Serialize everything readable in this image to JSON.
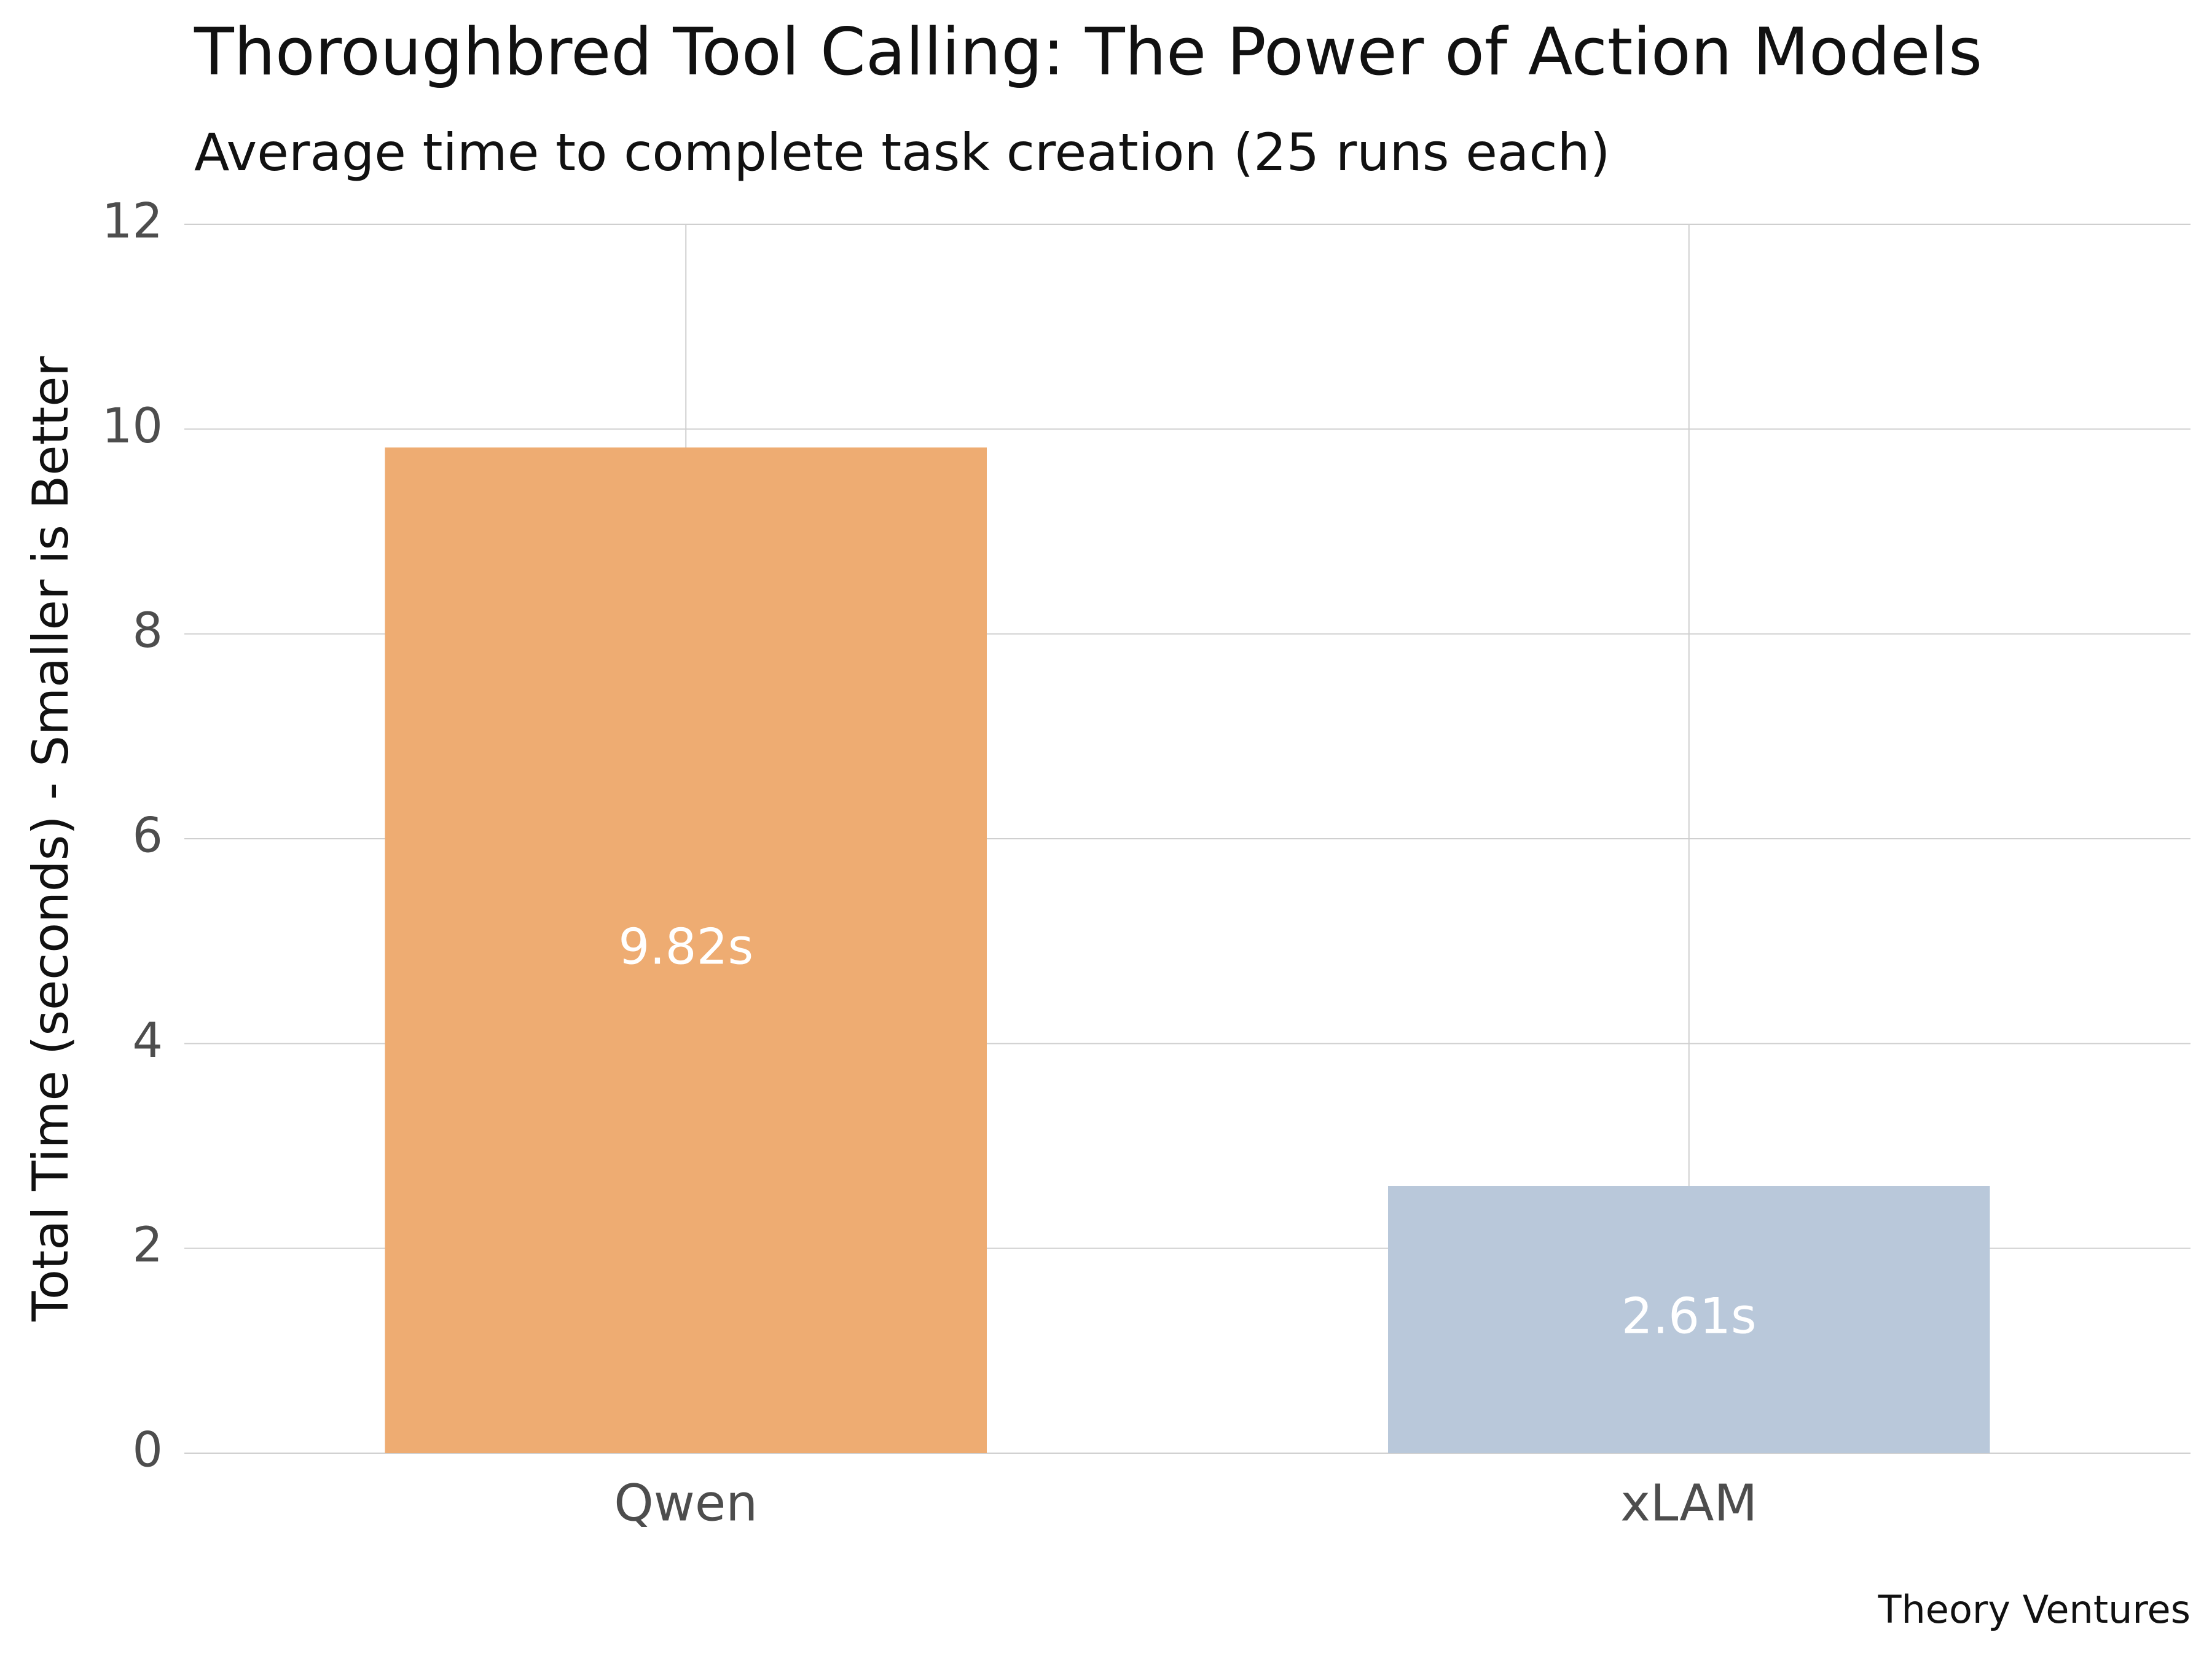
{
  "chart_data": {
    "type": "bar",
    "title": "Thoroughbred Tool Calling: The Power of Action Models",
    "subtitle": "Average time to complete task creation (25 runs each)",
    "y_label": "Total Time (seconds) - Smaller is Better",
    "caption": "Theory Ventures",
    "categories": [
      "Qwen",
      "xLAM"
    ],
    "values": [
      9.82,
      2.61
    ],
    "value_labels": [
      "9.82s",
      "2.61s"
    ],
    "colors": [
      "#eeac72",
      "#b9c8da"
    ],
    "ylim": [
      0,
      12
    ],
    "yticks": [
      0,
      2,
      4,
      6,
      8,
      10,
      12
    ],
    "grid": true
  }
}
